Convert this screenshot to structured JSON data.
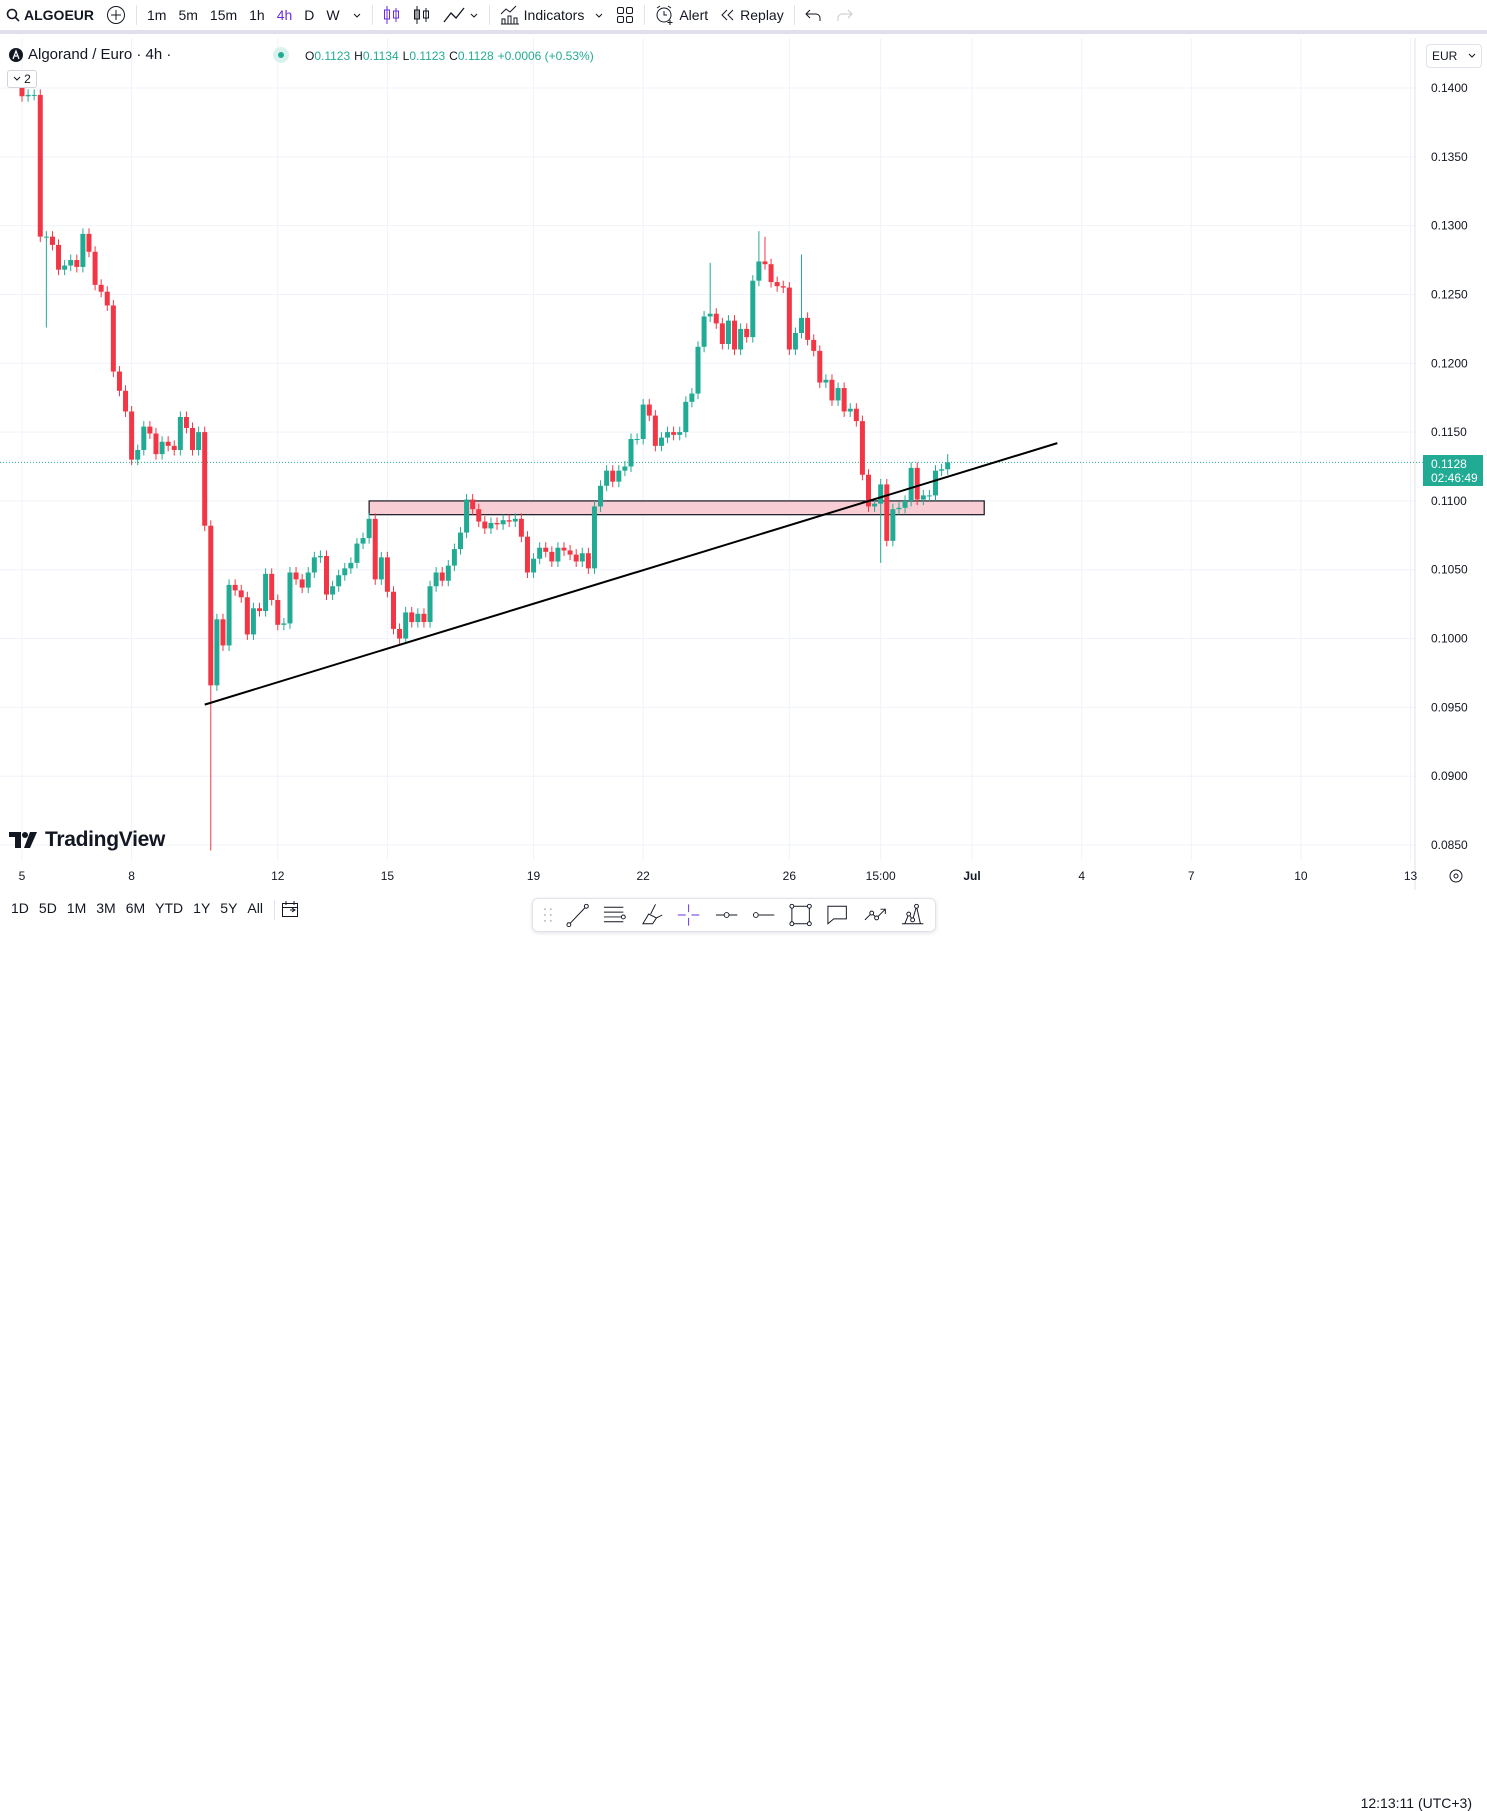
{
  "toolbar": {
    "symbol": "ALGOEUR",
    "intervals": [
      "1m",
      "5m",
      "15m",
      "1h",
      "4h",
      "D",
      "W"
    ],
    "active_interval": "4h",
    "indicators_label": "Indicators",
    "alert_label": "Alert",
    "replay_label": "Replay"
  },
  "legend": {
    "title": "Algorand / Euro · 4h ·",
    "collapse_count": "2",
    "o_label": "O",
    "o": "0.1123",
    "h_label": "H",
    "h": "0.1134",
    "l_label": "L",
    "l": "0.1123",
    "c_label": "C",
    "c": "0.1128",
    "change": "+0.0006 (+0.53%)"
  },
  "currency": "EUR",
  "last_price": {
    "value": "0.1128",
    "countdown": "02:46:49"
  },
  "logo_text": "TradingView",
  "bottom": {
    "ranges": [
      "1D",
      "5D",
      "1M",
      "3M",
      "6M",
      "YTD",
      "1Y",
      "5Y",
      "All"
    ],
    "clock": "12:13:11 (UTC+3)"
  },
  "colors": {
    "up": "#22ab94",
    "down": "#f23645",
    "zone": "#f8cdd3",
    "accent": "#6a2ee0"
  },
  "chart_data": {
    "type": "candlestick",
    "first_open": 0.14,
    "close": [
      0.1394,
      0.1395,
      0.1395,
      0.1292,
      0.1292,
      0.1286,
      0.1268,
      0.1271,
      0.1275,
      0.127,
      0.1294,
      0.1281,
      0.1257,
      0.1252,
      0.1242,
      0.1194,
      0.118,
      0.1165,
      0.113,
      0.1137,
      0.1154,
      0.1149,
      0.1134,
      0.1143,
      0.114,
      0.1137,
      0.1161,
      0.1153,
      0.1137,
      0.115,
      0.1082,
      0.0966,
      0.1014,
      0.0995,
      0.1039,
      0.1035,
      0.103,
      0.1003,
      0.1022,
      0.102,
      0.1047,
      0.1028,
      0.101,
      0.1011,
      0.1048,
      0.1043,
      0.1037,
      0.1048,
      0.1059,
      0.106,
      0.1032,
      0.1038,
      0.1046,
      0.1051,
      0.1055,
      0.1069,
      0.1073,
      0.1087,
      0.1043,
      0.1059,
      0.1034,
      0.1007,
      0.1,
      0.1019,
      0.1012,
      0.1018,
      0.1012,
      0.1038,
      0.1048,
      0.1042,
      0.1053,
      0.1065,
      0.1077,
      0.1101,
      0.1094,
      0.1085,
      0.108,
      0.1084,
      0.1083,
      0.1086,
      0.1085,
      0.1087,
      0.1074,
      0.1048,
      0.1058,
      0.1066,
      0.1063,
      0.1056,
      0.1066,
      0.1064,
      0.1061,
      0.1056,
      0.1062,
      0.1051,
      0.1096,
      0.1111,
      0.1122,
      0.1114,
      0.1122,
      0.1125,
      0.1145,
      0.1145,
      0.117,
      0.1162,
      0.114,
      0.1146,
      0.115,
      0.1148,
      0.115,
      0.1172,
      0.1178,
      0.1212,
      0.1234,
      0.1236,
      0.1229,
      0.1214,
      0.1231,
      0.121,
      0.1225,
      0.1219,
      0.126,
      0.1274,
      0.1272,
      0.1259,
      0.1256,
      0.1255,
      0.121,
      0.1222,
      0.1233,
      0.1217,
      0.1209,
      0.1186,
      0.1188,
      0.1173,
      0.1182,
      0.1165,
      0.1167,
      0.1158,
      0.1119,
      0.1096,
      0.1098,
      0.1112,
      0.1071,
      0.1094,
      0.1095,
      0.11,
      0.1124,
      0.1101,
      0.1104,
      0.1104,
      0.1122,
      0.1123,
      0.1128
    ],
    "notable_wicks": {
      "4": {
        "low": 0.1226
      },
      "31": {
        "low": 0.0846
      },
      "113": {
        "high": 0.1273
      },
      "121": {
        "high": 0.1296
      },
      "122": {
        "high": 0.1292
      },
      "128": {
        "high": 0.1279
      },
      "141": {
        "low": 0.1055
      },
      "152": {
        "high": 0.1134
      }
    },
    "y_ticks": [
      "0.1400",
      "0.1350",
      "0.1300",
      "0.1250",
      "0.1200",
      "0.1150",
      "0.1100",
      "0.1050",
      "0.1000",
      "0.0950",
      "0.0900",
      "0.0850"
    ],
    "x_ticks": [
      {
        "label": "5",
        "bar": 0
      },
      {
        "label": "8",
        "bar": 18
      },
      {
        "label": "12",
        "bar": 42
      },
      {
        "label": "15",
        "bar": 60
      },
      {
        "label": "19",
        "bar": 84
      },
      {
        "label": "22",
        "bar": 102
      },
      {
        "label": "26",
        "bar": 126
      },
      {
        "label": "15:00",
        "bar": 141
      },
      {
        "label": "Jul",
        "bar": 156
      },
      {
        "label": "4",
        "bar": 174
      },
      {
        "label": "7",
        "bar": 192
      },
      {
        "label": "10",
        "bar": 210
      },
      {
        "label": "13",
        "bar": 228
      }
    ],
    "ylim": [
      0.0835,
      0.142
    ],
    "grid": true,
    "drawings": {
      "trend_line": {
        "from": {
          "bar": 30,
          "price": 0.0952
        },
        "to": {
          "bar": 170,
          "price": 0.1142
        }
      },
      "zone": {
        "from_bar": 57,
        "to_bar": 158,
        "top": 0.11,
        "bottom": 0.109
      }
    }
  }
}
